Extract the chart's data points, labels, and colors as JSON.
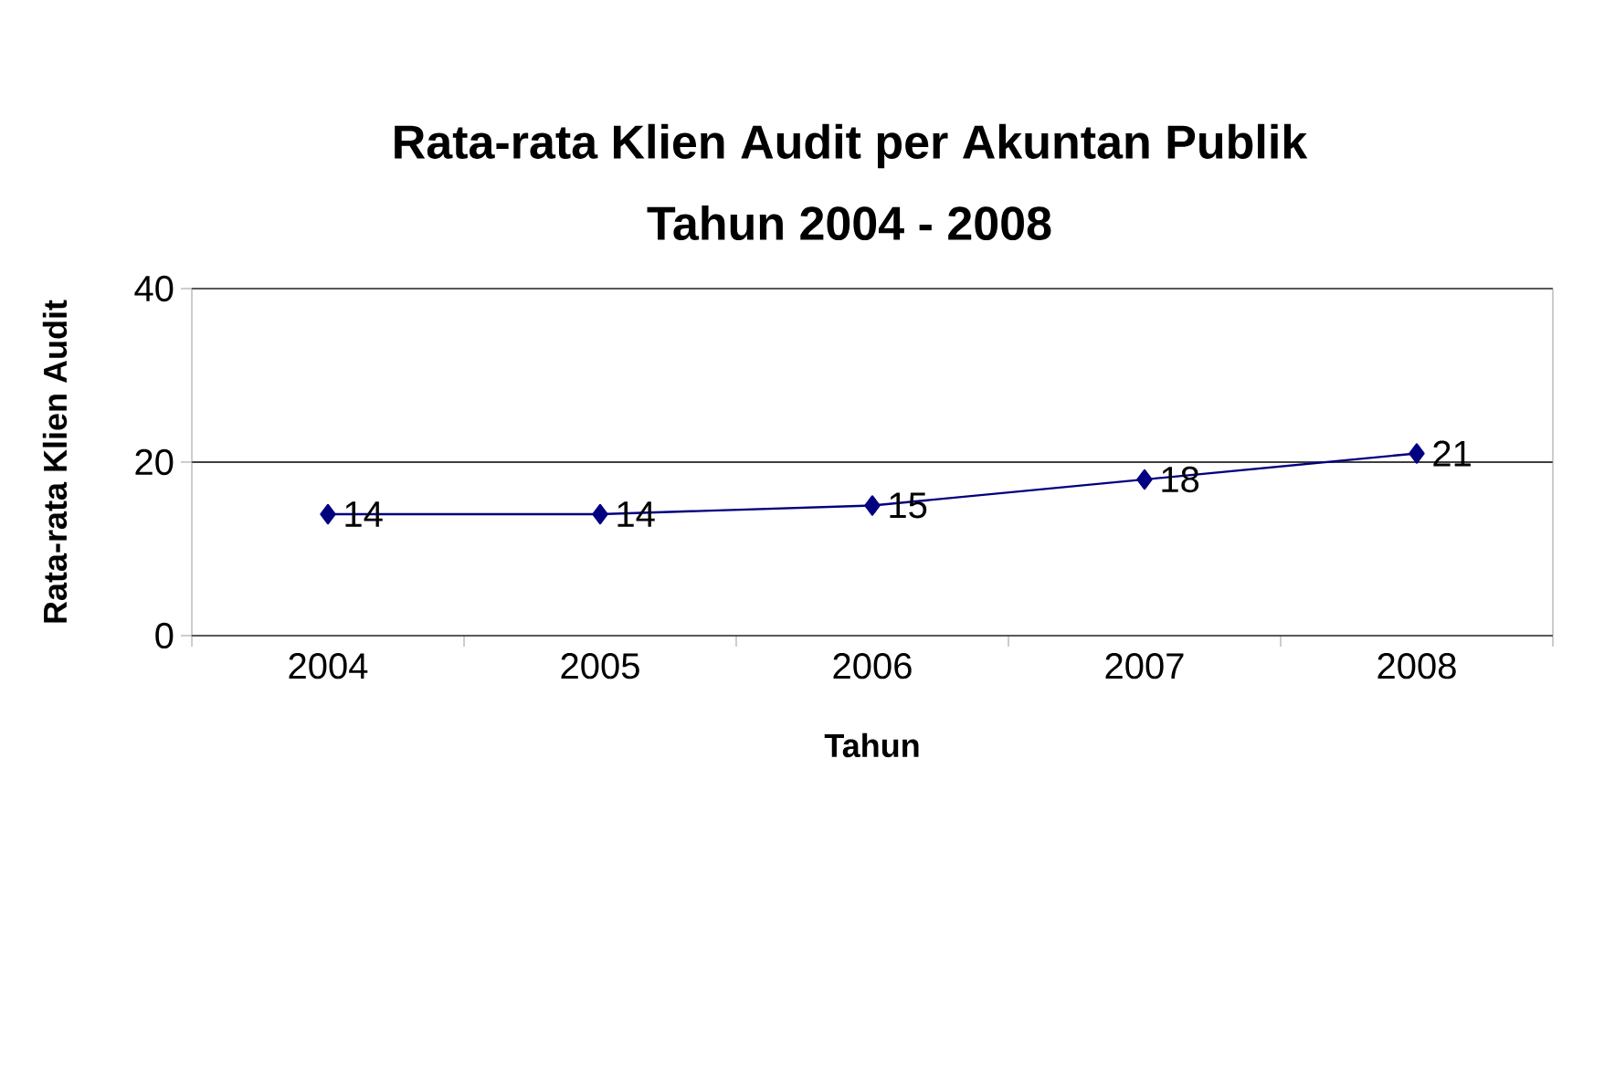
{
  "chart_data": {
    "type": "line",
    "title": "Rata-rata Klien Audit per Akuntan Publik",
    "subtitle": "Tahun 2004 - 2008",
    "xlabel": "Tahun",
    "ylabel": "Rata-rata Klien Audit",
    "categories": [
      "2004",
      "2005",
      "2006",
      "2007",
      "2008"
    ],
    "series": [
      {
        "color": "#000080",
        "values": [
          14,
          14,
          15,
          18,
          21
        ]
      }
    ],
    "ylim": [
      0,
      40
    ],
    "yticks": [
      0,
      20,
      40
    ],
    "grid": "y",
    "marker": "diamond",
    "data_labels": true
  }
}
